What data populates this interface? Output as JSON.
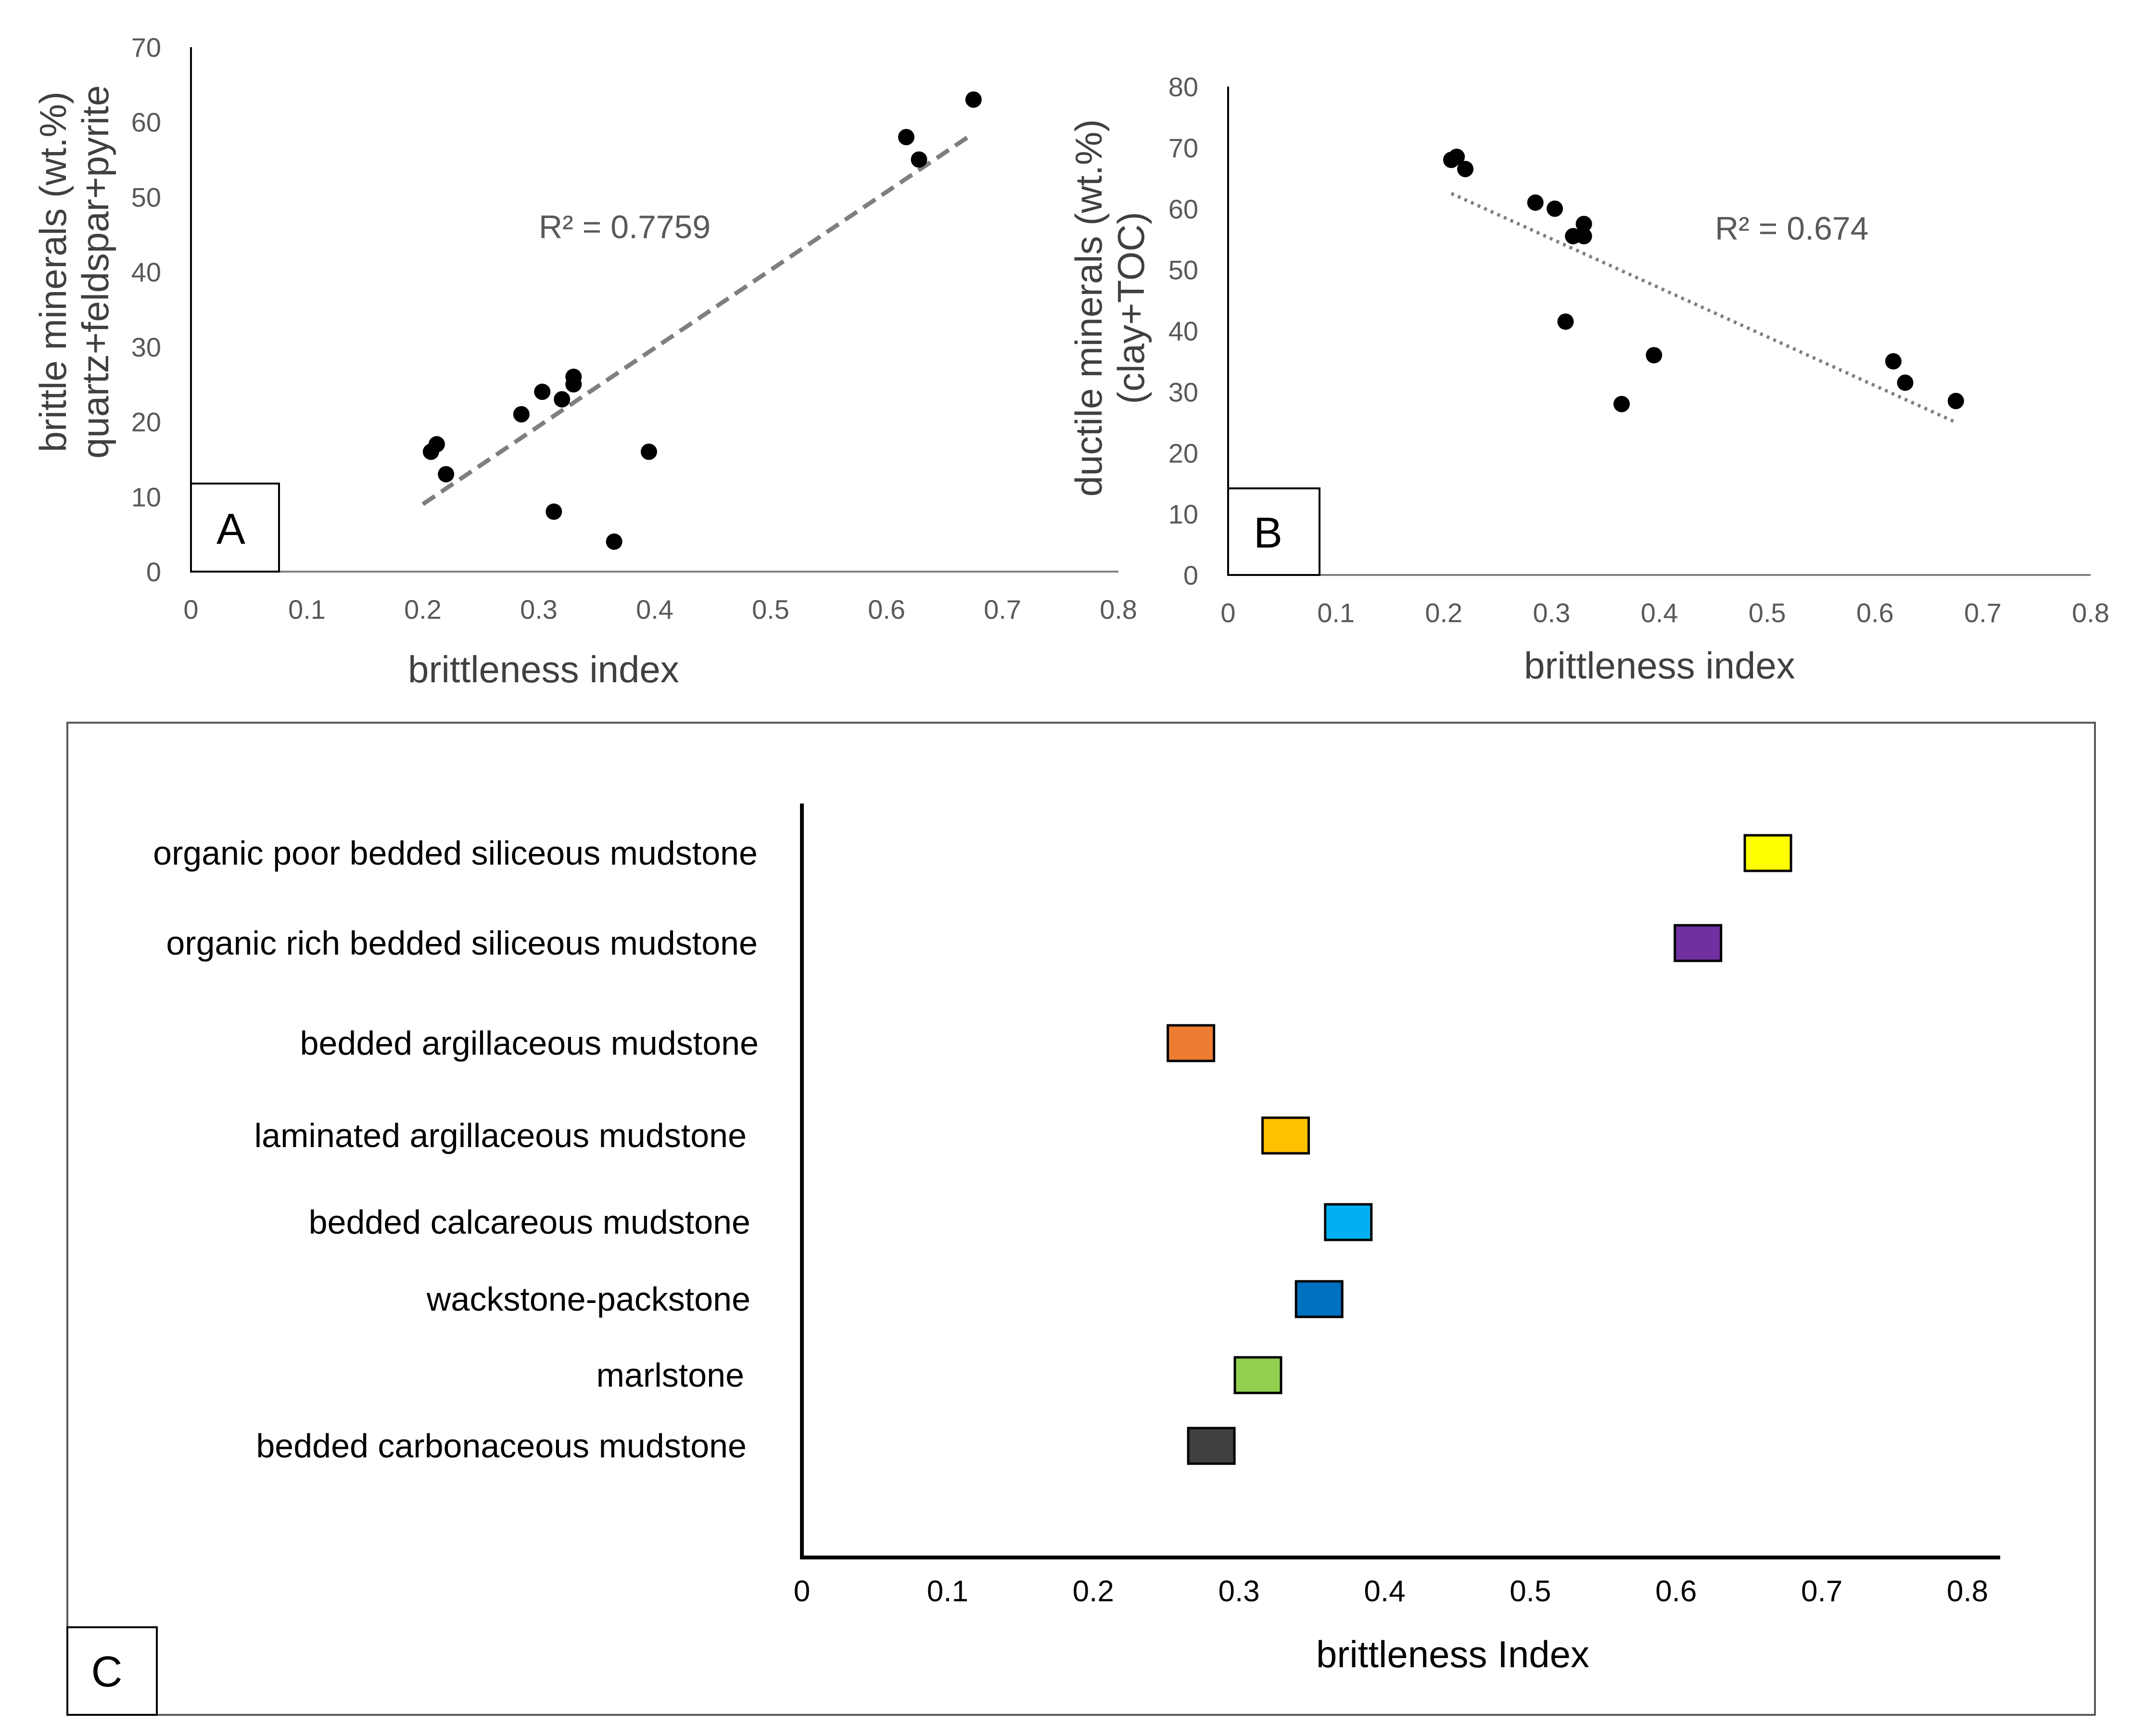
{
  "chart_data": [
    {
      "panel": "A",
      "type": "scatter",
      "xlabel": "brittleness index",
      "ylabel_lines": [
        "brittle minerals (wt.%)",
        "quartz+feldspar+pyrite"
      ],
      "xlim": [
        0,
        0.8
      ],
      "ylim": [
        0,
        70
      ],
      "xticks": [
        "0",
        "0.1",
        "0.2",
        "0.3",
        "0.4",
        "0.5",
        "0.6",
        "0.7",
        "0.8"
      ],
      "yticks": [
        "0",
        "10",
        "20",
        "30",
        "40",
        "50",
        "60",
        "70"
      ],
      "annotation": "R² = 0.7759",
      "trendline": {
        "style": "dashed",
        "x": [
          0.2,
          0.675
        ],
        "y": [
          9,
          58.5
        ]
      },
      "points": [
        {
          "x": 0.207,
          "y": 16
        },
        {
          "x": 0.212,
          "y": 17
        },
        {
          "x": 0.22,
          "y": 13
        },
        {
          "x": 0.285,
          "y": 21
        },
        {
          "x": 0.303,
          "y": 24
        },
        {
          "x": 0.32,
          "y": 23
        },
        {
          "x": 0.33,
          "y": 25
        },
        {
          "x": 0.33,
          "y": 26
        },
        {
          "x": 0.313,
          "y": 8
        },
        {
          "x": 0.365,
          "y": 4
        },
        {
          "x": 0.395,
          "y": 16
        },
        {
          "x": 0.617,
          "y": 58
        },
        {
          "x": 0.628,
          "y": 55
        },
        {
          "x": 0.675,
          "y": 63
        }
      ]
    },
    {
      "panel": "B",
      "type": "scatter",
      "xlabel": "brittleness index",
      "ylabel_lines": [
        "ductile minerals (wt.%)",
        "(clay+TOC)"
      ],
      "xlim": [
        0,
        0.8
      ],
      "ylim": [
        0,
        80
      ],
      "xticks": [
        "0",
        "0.1",
        "0.2",
        "0.3",
        "0.4",
        "0.5",
        "0.6",
        "0.7",
        "0.8"
      ],
      "yticks": [
        "0",
        "10",
        "20",
        "30",
        "40",
        "50",
        "60",
        "70",
        "80"
      ],
      "annotation": "R² = 0.674",
      "trendline": {
        "style": "dotted",
        "x": [
          0.207,
          0.675
        ],
        "y": [
          62.5,
          25
        ]
      },
      "points": [
        {
          "x": 0.207,
          "y": 68
        },
        {
          "x": 0.212,
          "y": 68.5
        },
        {
          "x": 0.22,
          "y": 66.5
        },
        {
          "x": 0.285,
          "y": 61
        },
        {
          "x": 0.303,
          "y": 60
        },
        {
          "x": 0.32,
          "y": 55.5
        },
        {
          "x": 0.33,
          "y": 57.5
        },
        {
          "x": 0.33,
          "y": 55.5
        },
        {
          "x": 0.313,
          "y": 41.5
        },
        {
          "x": 0.365,
          "y": 28
        },
        {
          "x": 0.395,
          "y": 36
        },
        {
          "x": 0.617,
          "y": 35
        },
        {
          "x": 0.628,
          "y": 31.5
        },
        {
          "x": 0.675,
          "y": 28.5
        }
      ]
    },
    {
      "panel": "C",
      "type": "scatter",
      "xlabel": "brittleness Index",
      "xlim": [
        0,
        0.85
      ],
      "xticks": [
        "0",
        "0.1",
        "0.2",
        "0.3",
        "0.4",
        "0.5",
        "0.6",
        "0.7",
        "0.8"
      ],
      "categories": [
        {
          "label": "organic poor bedded siliceous mudstone",
          "value": 0.663,
          "color": "#ffff00"
        },
        {
          "label": "organic rich bedded siliceous mudstone",
          "value": 0.615,
          "color": "#7030a0"
        },
        {
          "label": "bedded argillaceous mudstone",
          "value": 0.267,
          "color": "#ed7d31"
        },
        {
          "label": "laminated argillaceous mudstone",
          "value": 0.332,
          "color": "#ffc000"
        },
        {
          "label": "bedded calcareous mudstone",
          "value": 0.375,
          "color": "#00b0f0"
        },
        {
          "label": "wackstone-packstone",
          "value": 0.355,
          "color": "#0070c0"
        },
        {
          "label": "marlstone",
          "value": 0.313,
          "color": "#92d050"
        },
        {
          "label": "bedded carbonaceous mudstone",
          "value": 0.281,
          "color": "#404040"
        }
      ]
    }
  ]
}
